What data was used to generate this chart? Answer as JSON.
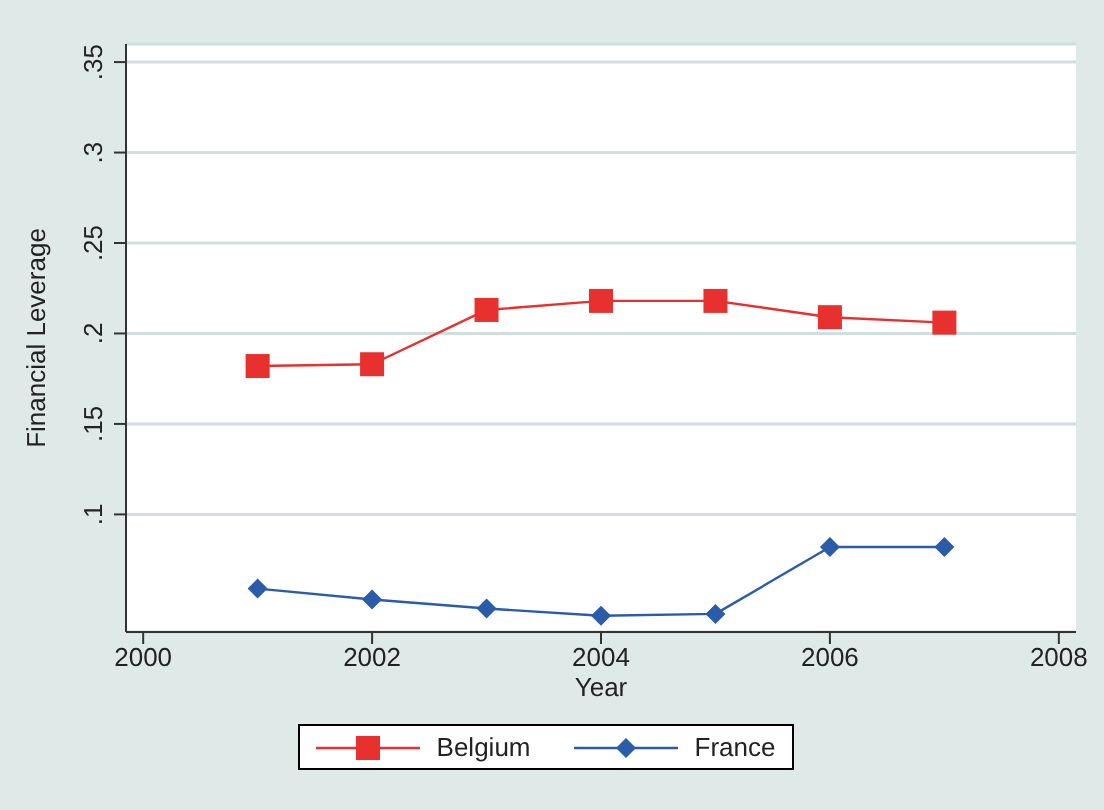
{
  "chart_data": {
    "type": "line",
    "xlabel": "Year",
    "ylabel": "Financial Leverage",
    "x": [
      2001,
      2002,
      2003,
      2004,
      2005,
      2006,
      2007
    ],
    "series": [
      {
        "name": "Belgium",
        "color": "#e8312f",
        "marker": "square",
        "values": [
          0.182,
          0.183,
          0.213,
          0.218,
          0.218,
          0.209,
          0.206
        ]
      },
      {
        "name": "France",
        "color": "#2a5caa",
        "marker": "diamond",
        "values": [
          0.059,
          0.053,
          0.048,
          0.044,
          0.045,
          0.082,
          0.082
        ]
      }
    ],
    "xlim": [
      1999.85,
      2008.15
    ],
    "xticks": [
      2000,
      2002,
      2004,
      2006,
      2008
    ],
    "ylim": [
      0.035,
      0.36
    ],
    "yticks": [
      {
        "value": 0.1,
        "label": ".1"
      },
      {
        "value": 0.15,
        "label": ".15"
      },
      {
        "value": 0.2,
        "label": ".2"
      },
      {
        "value": 0.25,
        "label": ".25"
      },
      {
        "value": 0.3,
        "label": ".3"
      },
      {
        "value": 0.35,
        "label": ".35"
      }
    ],
    "grid": "y",
    "legend": "bottom",
    "line_style": "solid"
  }
}
